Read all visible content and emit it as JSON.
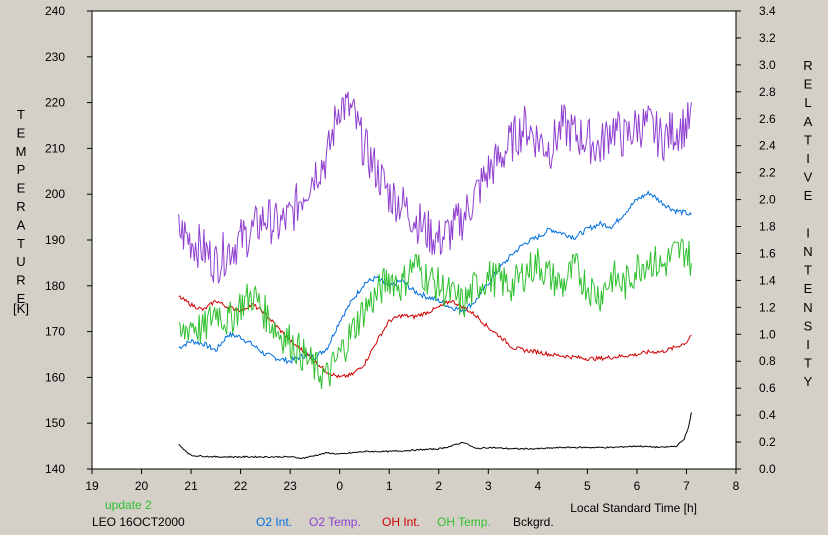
{
  "chart_data": {
    "type": "line",
    "xlabel": "Local Standard Time [h]",
    "ylabel_left": "TEMPERATURE",
    "ylabel_left_unit": "[K]",
    "ylabel_right": "RELATIVE INTENSITY",
    "x_ticks": [
      "19",
      "20",
      "21",
      "22",
      "23",
      "0",
      "1",
      "2",
      "3",
      "4",
      "5",
      "6",
      "7",
      "8"
    ],
    "xlim": [
      19,
      32
    ],
    "ylim_left": [
      140,
      240
    ],
    "y_left_ticks": [
      "140",
      "150",
      "160",
      "170",
      "180",
      "190",
      "200",
      "210",
      "220",
      "230",
      "240"
    ],
    "ylim_right": [
      0.0,
      3.4
    ],
    "y_right_ticks": [
      "0.0",
      "0.2",
      "0.4",
      "0.6",
      "0.8",
      "1.0",
      "1.2",
      "1.4",
      "1.6",
      "1.8",
      "2.0",
      "2.2",
      "2.4",
      "2.6",
      "2.8",
      "3.0",
      "3.2",
      "3.4"
    ],
    "annotations": {
      "update": "update 2",
      "station": "LEO 16OCT2000"
    },
    "series": [
      {
        "name": "O2 Int.",
        "color": "#0070e0",
        "axis": "right",
        "noise": 0.02,
        "x": [
          20.75,
          21.0,
          21.25,
          21.5,
          21.75,
          22.0,
          22.25,
          22.5,
          22.75,
          23.0,
          23.25,
          23.5,
          23.75,
          24.0,
          24.25,
          24.5,
          24.75,
          25.0,
          25.25,
          25.5,
          25.75,
          26.0,
          26.25,
          26.5,
          26.75,
          27.0,
          27.25,
          27.5,
          27.75,
          28.0,
          28.25,
          28.5,
          28.75,
          29.0,
          29.25,
          29.5,
          29.75,
          30.0,
          30.25,
          30.5,
          30.75,
          31.0,
          31.1
        ],
        "y": [
          0.9,
          0.95,
          0.93,
          0.88,
          1.0,
          0.98,
          0.92,
          0.85,
          0.82,
          0.8,
          0.84,
          0.83,
          0.9,
          1.1,
          1.25,
          1.38,
          1.42,
          1.35,
          1.4,
          1.32,
          1.28,
          1.25,
          1.2,
          1.18,
          1.25,
          1.38,
          1.5,
          1.6,
          1.68,
          1.72,
          1.78,
          1.75,
          1.72,
          1.78,
          1.82,
          1.8,
          1.9,
          2.0,
          2.05,
          1.98,
          1.92,
          1.9,
          1.88
        ]
      },
      {
        "name": "O2 Temp.",
        "color": "#9040d0",
        "axis": "left",
        "noise": 5,
        "x": [
          20.75,
          21.0,
          21.25,
          21.5,
          21.75,
          22.0,
          22.25,
          22.5,
          22.75,
          23.0,
          23.25,
          23.5,
          23.75,
          24.0,
          24.25,
          24.5,
          24.75,
          25.0,
          25.25,
          25.5,
          25.75,
          26.0,
          26.25,
          26.5,
          26.75,
          27.0,
          27.25,
          27.5,
          27.75,
          28.0,
          28.25,
          28.5,
          28.75,
          29.0,
          29.25,
          29.5,
          29.75,
          30.0,
          30.25,
          30.5,
          30.75,
          31.0,
          31.1
        ],
        "y": [
          192,
          190,
          188,
          185,
          188,
          190,
          192,
          195,
          193,
          195,
          200,
          205,
          208,
          220,
          218,
          210,
          205,
          200,
          198,
          195,
          192,
          190,
          192,
          195,
          200,
          205,
          208,
          212,
          215,
          212,
          210,
          215,
          213,
          212,
          210,
          215,
          212,
          215,
          215,
          212,
          214,
          215,
          216
        ]
      },
      {
        "name": "OH Int.",
        "color": "#d00000",
        "axis": "right",
        "noise": 0.015,
        "x": [
          20.75,
          21.0,
          21.25,
          21.5,
          21.75,
          22.0,
          22.25,
          22.5,
          22.75,
          23.0,
          23.25,
          23.5,
          23.75,
          24.0,
          24.25,
          24.5,
          24.75,
          25.0,
          25.25,
          25.5,
          25.75,
          26.0,
          26.25,
          26.5,
          26.75,
          27.0,
          27.25,
          27.5,
          27.75,
          28.0,
          28.25,
          28.5,
          28.75,
          29.0,
          29.25,
          29.5,
          29.75,
          30.0,
          30.25,
          30.5,
          30.75,
          31.0,
          31.1
        ],
        "y": [
          1.28,
          1.22,
          1.18,
          1.25,
          1.2,
          1.18,
          1.22,
          1.15,
          1.05,
          0.95,
          0.88,
          0.8,
          0.72,
          0.68,
          0.7,
          0.78,
          0.95,
          1.1,
          1.14,
          1.13,
          1.16,
          1.2,
          1.25,
          1.2,
          1.14,
          1.05,
          0.98,
          0.9,
          0.88,
          0.87,
          0.85,
          0.84,
          0.83,
          0.82,
          0.82,
          0.83,
          0.84,
          0.85,
          0.87,
          0.87,
          0.9,
          0.94,
          1.0
        ]
      },
      {
        "name": "OH Temp.",
        "color": "#30c030",
        "axis": "left",
        "noise": 4,
        "x": [
          20.75,
          21.0,
          21.25,
          21.5,
          21.75,
          22.0,
          22.25,
          22.5,
          22.75,
          23.0,
          23.25,
          23.5,
          23.75,
          24.0,
          24.25,
          24.5,
          24.75,
          25.0,
          25.25,
          25.5,
          25.75,
          26.0,
          26.25,
          26.5,
          26.75,
          27.0,
          27.25,
          27.5,
          27.75,
          28.0,
          28.25,
          28.5,
          28.75,
          29.0,
          29.25,
          29.5,
          29.75,
          30.0,
          30.25,
          30.5,
          30.75,
          31.0,
          31.1
        ],
        "y": [
          168,
          172,
          170,
          175,
          172,
          176,
          178,
          174,
          170,
          168,
          165,
          162,
          160,
          165,
          170,
          175,
          178,
          182,
          180,
          185,
          182,
          180,
          178,
          176,
          180,
          182,
          181,
          180,
          183,
          185,
          182,
          180,
          184,
          180,
          178,
          182,
          180,
          184,
          186,
          184,
          187,
          188,
          185
        ]
      },
      {
        "name": "Bckgrd.",
        "color": "#000000",
        "axis": "right",
        "noise": 0.005,
        "x": [
          20.75,
          21.0,
          21.5,
          22.0,
          22.5,
          23.0,
          23.25,
          23.5,
          23.75,
          24.0,
          24.25,
          24.5,
          25.0,
          25.5,
          26.0,
          26.25,
          26.5,
          26.75,
          27.0,
          27.5,
          28.0,
          28.5,
          29.0,
          29.5,
          30.0,
          30.5,
          30.8,
          30.95,
          31.05,
          31.1
        ],
        "y": [
          0.18,
          0.1,
          0.09,
          0.09,
          0.09,
          0.09,
          0.08,
          0.1,
          0.12,
          0.11,
          0.12,
          0.13,
          0.13,
          0.14,
          0.15,
          0.17,
          0.2,
          0.15,
          0.16,
          0.15,
          0.15,
          0.16,
          0.16,
          0.16,
          0.17,
          0.16,
          0.17,
          0.22,
          0.32,
          0.42
        ]
      }
    ]
  }
}
